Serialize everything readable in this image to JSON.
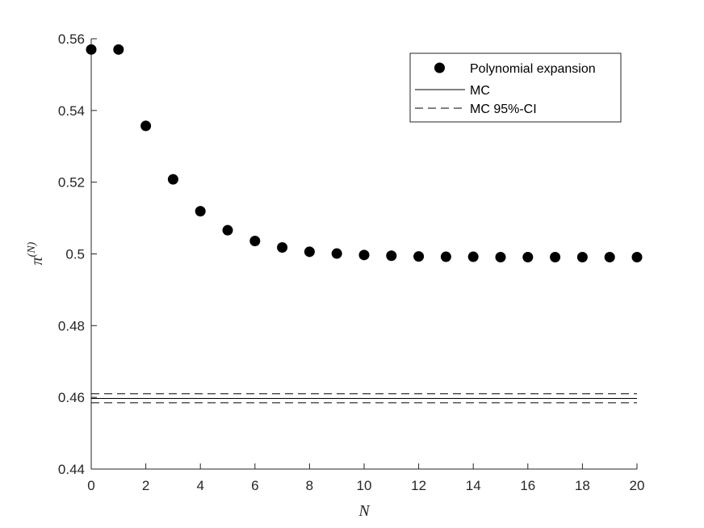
{
  "chart_data": {
    "type": "scatter",
    "xlabel": "N",
    "ylabel": "π",
    "ylabel_sup": "(N)",
    "xlim": [
      0,
      20
    ],
    "ylim": [
      0.44,
      0.56
    ],
    "xticks": [
      0,
      2,
      4,
      6,
      8,
      10,
      12,
      14,
      16,
      18,
      20
    ],
    "xtick_labels": [
      "0",
      "2",
      "4",
      "6",
      "8",
      "10",
      "12",
      "14",
      "16",
      "18",
      "20"
    ],
    "yticks": [
      0.44,
      0.46,
      0.48,
      0.5,
      0.52,
      0.54,
      0.56
    ],
    "ytick_labels": [
      "0.44",
      "0.46",
      "0.48",
      "0.5",
      "0.52",
      "0.54",
      "0.56"
    ],
    "grid": false,
    "legend_position": "top-right",
    "series": [
      {
        "name": "Polynomial expansion",
        "style": "markers",
        "color": "#000000",
        "x": [
          0,
          1,
          2,
          3,
          4,
          5,
          6,
          7,
          8,
          9,
          10,
          11,
          12,
          13,
          14,
          15,
          16,
          17,
          18,
          19,
          20
        ],
        "y": [
          0.557,
          0.557,
          0.5357,
          0.5208,
          0.5119,
          0.5066,
          0.5036,
          0.5018,
          0.5006,
          0.5001,
          0.4997,
          0.4995,
          0.4993,
          0.4992,
          0.4992,
          0.4991,
          0.4991,
          0.4991,
          0.4991,
          0.4991,
          0.4991
        ]
      },
      {
        "name": "MC",
        "style": "solid",
        "color": "#000000",
        "x": [
          0,
          20
        ],
        "y": [
          0.4597,
          0.4597
        ]
      },
      {
        "name": "MC 95%-CI",
        "style": "dashed",
        "color": "#000000",
        "x": [
          0,
          20
        ],
        "y": [
          0.461,
          0.461
        ],
        "y_lower": [
          0.4585,
          0.4585
        ]
      }
    ]
  }
}
